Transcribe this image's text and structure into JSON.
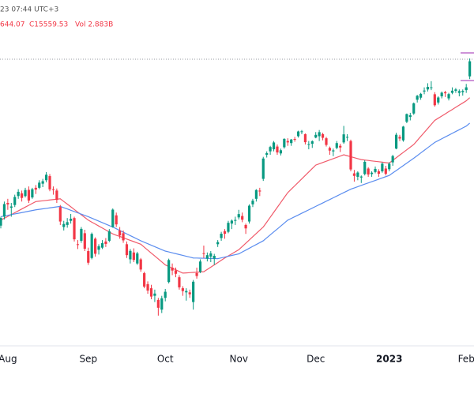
{
  "chart_data": {
    "type": "candlestick",
    "subtitle": "23 07:44 UTC+3",
    "annotations": [
      "644.07",
      "C15559.53",
      "Vol 2.883B"
    ],
    "up_color": "#089981",
    "down_color": "#f23645",
    "ylim": [
      11400,
      16450
    ],
    "categories": [
      null,
      null,
      "Aug",
      null,
      null,
      null,
      null,
      null,
      null,
      null,
      null,
      null,
      null,
      null,
      null,
      null,
      null,
      null,
      null,
      null,
      null,
      null,
      null,
      null,
      null,
      "Sep",
      null,
      null,
      null,
      null,
      null,
      null,
      null,
      null,
      null,
      null,
      null,
      null,
      null,
      null,
      null,
      null,
      null,
      null,
      null,
      null,
      null,
      "Oct",
      null,
      null,
      null,
      null,
      null,
      null,
      null,
      null,
      null,
      null,
      null,
      null,
      null,
      null,
      null,
      null,
      null,
      null,
      null,
      null,
      "Nov",
      null,
      null,
      null,
      null,
      null,
      null,
      null,
      null,
      null,
      null,
      null,
      null,
      null,
      null,
      null,
      null,
      null,
      null,
      null,
      null,
      null,
      "Dec",
      null,
      null,
      null,
      null,
      null,
      null,
      null,
      null,
      null,
      null,
      null,
      null,
      null,
      null,
      null,
      null,
      null,
      null,
      null,
      null,
      "2023",
      null,
      null,
      null,
      null,
      null,
      null,
      null,
      null,
      null,
      null,
      null,
      null,
      null,
      null,
      null,
      null,
      null,
      null,
      null,
      null,
      null,
      "Feb",
      null
    ],
    "ohlc": [
      [
        13170,
        13300,
        13130,
        13282
      ],
      [
        13300,
        13520,
        13260,
        13484
      ],
      [
        13500,
        13560,
        13400,
        13479
      ],
      [
        13430,
        13500,
        13300,
        13449
      ],
      [
        13470,
        13620,
        13440,
        13587
      ],
      [
        13600,
        13700,
        13560,
        13662
      ],
      [
        13640,
        13680,
        13520,
        13573
      ],
      [
        13600,
        13720,
        13580,
        13688
      ],
      [
        13690,
        13740,
        13500,
        13535
      ],
      [
        13580,
        13720,
        13560,
        13700
      ],
      [
        13720,
        13760,
        13630,
        13694
      ],
      [
        13720,
        13830,
        13700,
        13795
      ],
      [
        13780,
        13850,
        13730,
        13816
      ],
      [
        13830,
        13948,
        13800,
        13910
      ],
      [
        13890,
        13920,
        13670,
        13697
      ],
      [
        13700,
        13740,
        13620,
        13697
      ],
      [
        13680,
        13710,
        13500,
        13544
      ],
      [
        13440,
        13470,
        13180,
        13230
      ],
      [
        13150,
        13240,
        13100,
        13194
      ],
      [
        13180,
        13280,
        13140,
        13221
      ],
      [
        13240,
        13340,
        13200,
        13271
      ],
      [
        13280,
        13300,
        12940,
        12971
      ],
      [
        12900,
        12960,
        12830,
        12893
      ],
      [
        12950,
        13150,
        12920,
        13123
      ],
      [
        13060,
        13110,
        12800,
        12834
      ],
      [
        12800,
        12850,
        12600,
        12631
      ],
      [
        12700,
        13070,
        12680,
        13050
      ],
      [
        12980,
        13000,
        12720,
        12761
      ],
      [
        12820,
        12900,
        12750,
        12871
      ],
      [
        12850,
        12960,
        12830,
        12916
      ],
      [
        12940,
        12990,
        12860,
        12904
      ],
      [
        12950,
        13120,
        12930,
        13088
      ],
      [
        13150,
        13420,
        13140,
        13403
      ],
      [
        13320,
        13360,
        13150,
        13188
      ],
      [
        13100,
        13150,
        12980,
        13028
      ],
      [
        13060,
        13100,
        12920,
        12956
      ],
      [
        12900,
        12940,
        12700,
        12741
      ],
      [
        12680,
        12830,
        12620,
        12803
      ],
      [
        12780,
        12840,
        12640,
        12671
      ],
      [
        12620,
        12790,
        12600,
        12767
      ],
      [
        12680,
        12700,
        12500,
        12532
      ],
      [
        12480,
        12500,
        12260,
        12284
      ],
      [
        12320,
        12360,
        12180,
        12227
      ],
      [
        12260,
        12310,
        12100,
        12139
      ],
      [
        12150,
        12240,
        12060,
        12183
      ],
      [
        12090,
        12120,
        11862,
        11976
      ],
      [
        11950,
        12150,
        11900,
        12114
      ],
      [
        12120,
        12250,
        12070,
        12209
      ],
      [
        12350,
        12690,
        12330,
        12670
      ],
      [
        12560,
        12620,
        12450,
        12517
      ],
      [
        12520,
        12560,
        12420,
        12470
      ],
      [
        12420,
        12450,
        12240,
        12273
      ],
      [
        12260,
        12290,
        12150,
        12219
      ],
      [
        12200,
        12260,
        12080,
        12220
      ],
      [
        12200,
        12240,
        12120,
        12173
      ],
      [
        12060,
        12380,
        11950,
        12355
      ],
      [
        12480,
        12560,
        12400,
        12438
      ],
      [
        12500,
        12680,
        12480,
        12649
      ],
      [
        12770,
        12880,
        12700,
        12765
      ],
      [
        12690,
        12780,
        12650,
        12741
      ],
      [
        12720,
        12800,
        12640,
        12767
      ],
      [
        12690,
        12760,
        12600,
        12731
      ],
      [
        12900,
        12960,
        12860,
        12931
      ],
      [
        12990,
        13080,
        12950,
        13053
      ],
      [
        13090,
        13120,
        12980,
        13052
      ],
      [
        13080,
        13240,
        13060,
        13211
      ],
      [
        13200,
        13260,
        13120,
        13243
      ],
      [
        13240,
        13300,
        13180,
        13253
      ],
      [
        13290,
        13400,
        13260,
        13338
      ],
      [
        13310,
        13360,
        13220,
        13256
      ],
      [
        13180,
        13200,
        13050,
        13130
      ],
      [
        13230,
        13480,
        13200,
        13460
      ],
      [
        13480,
        13560,
        13440,
        13533
      ],
      [
        13560,
        13700,
        13520,
        13688
      ],
      [
        13680,
        13720,
        13600,
        13666
      ],
      [
        13850,
        14170,
        13820,
        14146
      ],
      [
        14200,
        14250,
        14160,
        14224
      ],
      [
        14250,
        14330,
        14200,
        14313
      ],
      [
        14280,
        14400,
        14250,
        14379
      ],
      [
        14320,
        14350,
        14200,
        14234
      ],
      [
        14220,
        14290,
        14190,
        14266
      ],
      [
        14310,
        14440,
        14290,
        14431
      ],
      [
        14400,
        14440,
        14330,
        14380
      ],
      [
        14370,
        14430,
        14330,
        14422
      ],
      [
        14430,
        14460,
        14390,
        14427
      ],
      [
        14470,
        14550,
        14450,
        14539
      ],
      [
        14530,
        14560,
        14500,
        14541
      ],
      [
        14500,
        14510,
        14350,
        14383
      ],
      [
        14350,
        14400,
        14280,
        14355
      ],
      [
        14360,
        14410,
        14300,
        14397
      ],
      [
        14450,
        14530,
        14440,
        14490
      ],
      [
        14470,
        14560,
        14400,
        14529
      ],
      [
        14500,
        14520,
        14410,
        14447
      ],
      [
        14440,
        14460,
        14320,
        14343
      ],
      [
        14300,
        14320,
        14200,
        14261
      ],
      [
        14250,
        14290,
        14180,
        14264
      ],
      [
        14300,
        14400,
        14280,
        14370
      ],
      [
        14330,
        14360,
        14240,
        14306
      ],
      [
        14380,
        14620,
        14360,
        14497
      ],
      [
        14450,
        14500,
        14400,
        14460
      ],
      [
        14400,
        14420,
        13960,
        13987
      ],
      [
        13930,
        13980,
        13810,
        13893
      ],
      [
        13880,
        13960,
        13830,
        13942
      ],
      [
        13870,
        13900,
        13790,
        13884
      ],
      [
        13920,
        14120,
        13900,
        14098
      ],
      [
        14000,
        14020,
        13880,
        13914
      ],
      [
        13920,
        13960,
        13880,
        13940
      ],
      [
        13950,
        14030,
        13930,
        13995
      ],
      [
        13960,
        13990,
        13880,
        13925
      ],
      [
        13960,
        14090,
        13940,
        14071
      ],
      [
        14000,
        14040,
        13900,
        13924
      ],
      [
        13990,
        14090,
        13960,
        14070
      ],
      [
        14090,
        14200,
        14040,
        14181
      ],
      [
        14290,
        14520,
        14280,
        14491
      ],
      [
        14460,
        14490,
        14400,
        14436
      ],
      [
        14410,
        14620,
        14390,
        14610
      ],
      [
        14680,
        14800,
        14660,
        14792
      ],
      [
        14750,
        14810,
        14700,
        14775
      ],
      [
        14800,
        14960,
        14780,
        14948
      ],
      [
        15000,
        15070,
        14960,
        15058
      ],
      [
        15030,
        15100,
        15000,
        15086
      ],
      [
        15120,
        15180,
        15080,
        15134
      ],
      [
        15150,
        15240,
        15120,
        15187
      ],
      [
        15170,
        15270,
        15140,
        15181
      ],
      [
        15080,
        15110,
        14900,
        14920
      ],
      [
        14960,
        15050,
        14930,
        15033
      ],
      [
        15050,
        15120,
        15020,
        15103
      ],
      [
        15110,
        15130,
        15040,
        15094
      ],
      [
        15020,
        15100,
        14990,
        15082
      ],
      [
        15100,
        15180,
        15080,
        15132
      ],
      [
        15130,
        15170,
        15100,
        15150
      ],
      [
        15100,
        15150,
        15050,
        15126
      ],
      [
        15110,
        15150,
        15060,
        15128
      ],
      [
        15140,
        15230,
        15100,
        15181
      ],
      [
        15340,
        15600,
        15300,
        15559.53
      ]
    ],
    "moving_averages": [
      {
        "color": "#f05a6a",
        "values": [
          13250,
          13277,
          13304,
          13331,
          13358,
          13385,
          13412,
          13439,
          13466,
          13493,
          13520,
          13526,
          13531,
          13537,
          13543,
          13549,
          13554,
          13560,
          13521,
          13483,
          13444,
          13405,
          13366,
          13328,
          13289,
          13250,
          13221,
          13193,
          13164,
          13136,
          13107,
          13079,
          13050,
          13031,
          13013,
          12994,
          12975,
          12956,
          12938,
          12919,
          12900,
          12857,
          12814,
          12771,
          12729,
          12686,
          12643,
          12600,
          12576,
          12552,
          12528,
          12504,
          12480,
          12483,
          12487,
          12490,
          12493,
          12497,
          12500,
          12533,
          12567,
          12600,
          12633,
          12667,
          12700,
          12730,
          12760,
          12790,
          12820,
          12867,
          12914,
          12961,
          13009,
          13056,
          13103,
          13150,
          13221,
          13293,
          13364,
          13436,
          13507,
          13579,
          13650,
          13700,
          13750,
          13800,
          13850,
          13900,
          13950,
          14000,
          14050,
          14069,
          14088,
          14106,
          14125,
          14144,
          14163,
          14181,
          14200,
          14186,
          14172,
          14158,
          14144,
          14130,
          14124,
          14118,
          14111,
          14105,
          14099,
          14093,
          14086,
          14080,
          14119,
          14157,
          14196,
          14234,
          14273,
          14311,
          14350,
          14408,
          14467,
          14525,
          14583,
          14642,
          14700,
          14732,
          14763,
          14795,
          14827,
          14858,
          14890,
          14922,
          14953,
          14985,
          15030
        ]
      },
      {
        "color": "#5b8def",
        "values": [
          13300,
          13310,
          13320,
          13330,
          13340,
          13350,
          13360,
          13370,
          13380,
          13390,
          13400,
          13407,
          13414,
          13421,
          13429,
          13436,
          13443,
          13450,
          13431,
          13413,
          13394,
          13375,
          13356,
          13338,
          13319,
          13300,
          13279,
          13257,
          13236,
          13214,
          13193,
          13171,
          13150,
          13125,
          13100,
          13075,
          13050,
          13025,
          13000,
          12975,
          12950,
          12929,
          12907,
          12886,
          12864,
          12843,
          12821,
          12800,
          12788,
          12775,
          12763,
          12750,
          12738,
          12725,
          12713,
          12700,
          12699,
          12697,
          12696,
          12694,
          12693,
          12691,
          12690,
          12702,
          12713,
          12725,
          12737,
          12748,
          12760,
          12787,
          12814,
          12841,
          12869,
          12896,
          12923,
          12950,
          12993,
          13036,
          13079,
          13121,
          13164,
          13207,
          13250,
          13275,
          13300,
          13325,
          13350,
          13375,
          13400,
          13425,
          13450,
          13475,
          13500,
          13525,
          13550,
          13575,
          13600,
          13625,
          13650,
          13675,
          13700,
          13718,
          13736,
          13755,
          13773,
          13791,
          13809,
          13827,
          13845,
          13864,
          13882,
          13900,
          13936,
          13971,
          14007,
          14043,
          14079,
          14114,
          14150,
          14188,
          14227,
          14265,
          14303,
          14342,
          14380,
          14406,
          14433,
          14459,
          14485,
          14512,
          14538,
          14564,
          14591,
          14617,
          14660
        ]
      }
    ]
  }
}
